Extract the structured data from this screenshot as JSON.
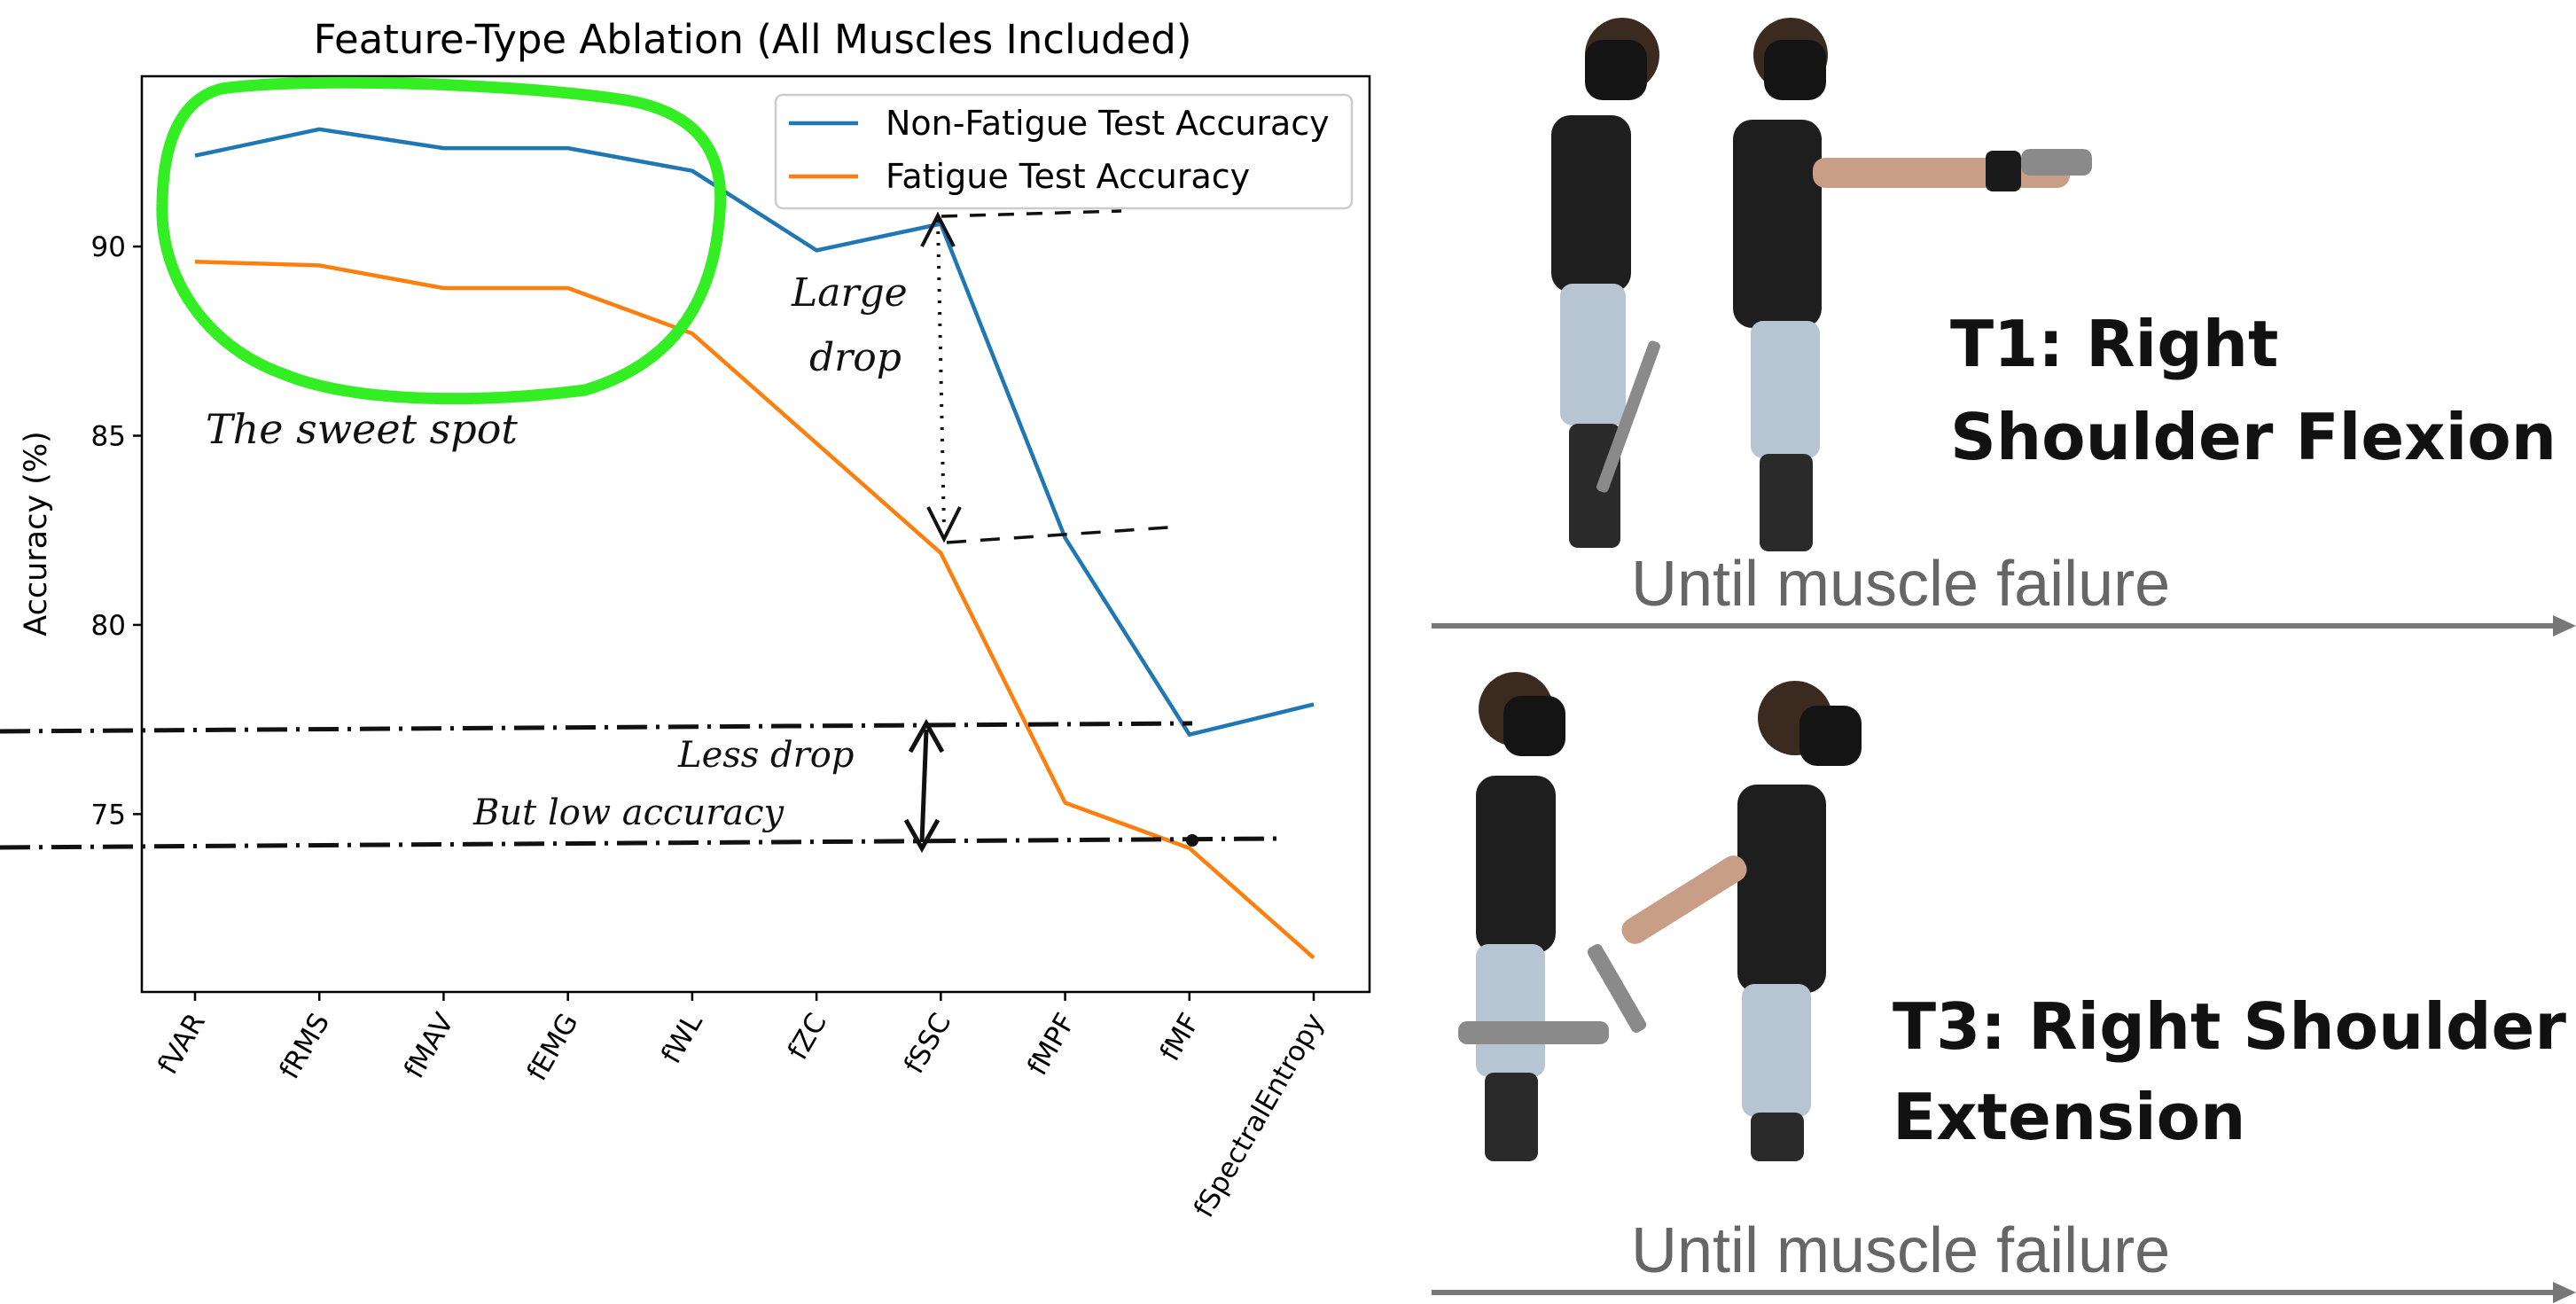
{
  "chart_data": {
    "type": "line",
    "title": "Feature-Type Ablation (All Muscles Included)",
    "xlabel": "",
    "ylabel": "Accuracy (%)",
    "categories": [
      "fVAR",
      "fRMS",
      "fMAV",
      "fEMG",
      "fWL",
      "fZC",
      "fSSC",
      "fMPF",
      "fMF",
      "fSpectralEntropy"
    ],
    "yticks": [
      75,
      80,
      85,
      90
    ],
    "ylim": [
      70.3,
      94.5
    ],
    "grid": false,
    "legend_position": "top-right",
    "series": [
      {
        "name": "Non-Fatigue Test Accuracy",
        "color": "#1f77b4",
        "values": [
          92.4,
          93.1,
          92.6,
          92.6,
          92.0,
          89.9,
          90.6,
          82.3,
          77.1,
          77.9
        ]
      },
      {
        "name": "Fatigue Test Accuracy",
        "color": "#ff7f0e",
        "values": [
          89.6,
          89.5,
          88.9,
          88.9,
          87.7,
          84.8,
          81.9,
          75.3,
          74.1,
          71.2
        ]
      }
    ]
  },
  "annotations": {
    "sweet_spot": "The sweet spot",
    "large_drop_line1": "Large",
    "large_drop_line2": "drop",
    "less_drop": "Less drop",
    "low_accuracy": "But low accuracy",
    "highlight_color": "#33ee22"
  },
  "panels": [
    {
      "label_line1": "T1: Right",
      "label_line2": "Shoulder Flexion",
      "caption": "Until muscle failure"
    },
    {
      "label_line1": "T3: Right Shoulder",
      "label_line2": "Extension",
      "caption": "Until muscle failure"
    }
  ]
}
